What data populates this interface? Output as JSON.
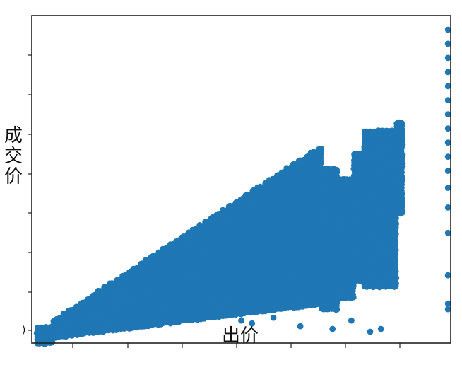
{
  "chart_data": {
    "type": "scatter",
    "title": "",
    "xlabel": "出价",
    "ylabel": "成交价",
    "xlim": [
      0,
      780
    ],
    "ylim": [
      0,
      580
    ],
    "grid": false,
    "legend": false,
    "colors": {
      "series": "#1f77b4",
      "axes": "#222222",
      "background": "#ffffff"
    },
    "ytick_labels": [
      ")"
    ],
    "series": [
      {
        "values_note_free": true,
        "bands": [
          {
            "x_range": [
              10,
              40
            ],
            "y_bottom": 0,
            "y_top": 30
          },
          {
            "x_range": [
              40,
              540
            ],
            "y_bottom_start": 10,
            "y_bottom_end": 70,
            "y_top_start": 40,
            "y_top_end": 350
          },
          {
            "x_range": [
              540,
              570
            ],
            "y_bottom": 60,
            "y_top": 310
          },
          {
            "x_range": [
              570,
              600
            ],
            "y_bottom": 80,
            "y_top": 290
          },
          {
            "x_range": [
              600,
              620
            ],
            "y_bottom": 110,
            "y_top": 340
          },
          {
            "x_range": [
              620,
              680
            ],
            "y_bottom": 100,
            "y_top": 380
          },
          {
            "x_range": [
              680,
              690
            ],
            "y_bottom": 230,
            "y_top": 390
          }
        ],
        "points": [
          {
            "x": 775,
            "y": 555
          },
          {
            "x": 775,
            "y": 530
          },
          {
            "x": 775,
            "y": 505
          },
          {
            "x": 775,
            "y": 480
          },
          {
            "x": 775,
            "y": 455
          },
          {
            "x": 775,
            "y": 430
          },
          {
            "x": 775,
            "y": 405
          },
          {
            "x": 775,
            "y": 380
          },
          {
            "x": 775,
            "y": 355
          },
          {
            "x": 775,
            "y": 330
          },
          {
            "x": 775,
            "y": 305
          },
          {
            "x": 775,
            "y": 275
          },
          {
            "x": 775,
            "y": 240
          },
          {
            "x": 775,
            "y": 195
          },
          {
            "x": 775,
            "y": 120
          },
          {
            "x": 775,
            "y": 70
          },
          {
            "x": 775,
            "y": 60
          },
          {
            "x": 360,
            "y": 55
          },
          {
            "x": 390,
            "y": 40
          },
          {
            "x": 410,
            "y": 35
          },
          {
            "x": 450,
            "y": 45
          },
          {
            "x": 500,
            "y": 30
          },
          {
            "x": 560,
            "y": 25
          },
          {
            "x": 595,
            "y": 40
          },
          {
            "x": 630,
            "y": 20
          },
          {
            "x": 650,
            "y": 25
          }
        ]
      }
    ]
  }
}
